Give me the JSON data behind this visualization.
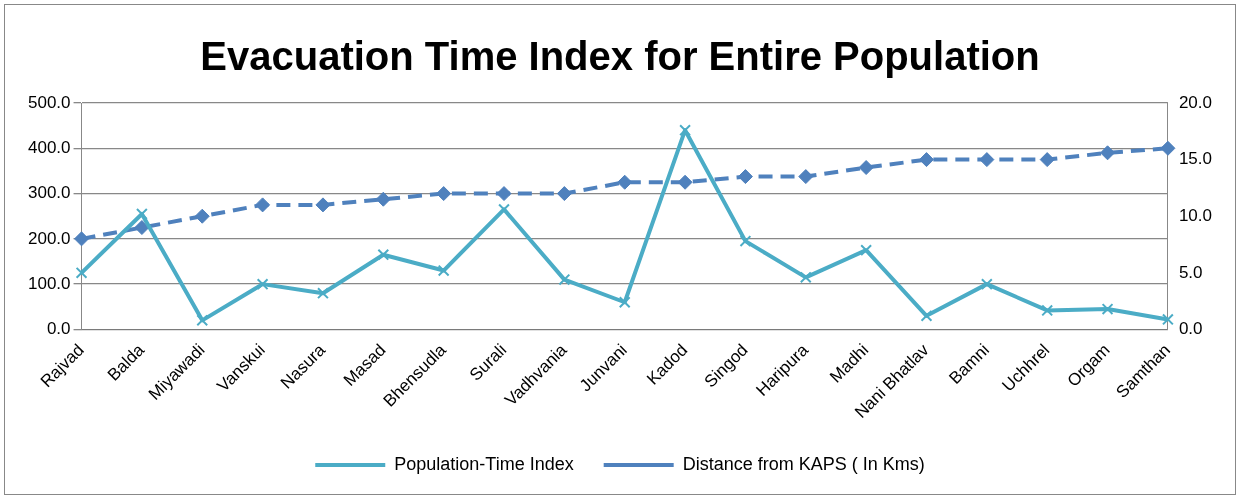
{
  "chart_data": {
    "type": "line",
    "title": "Evacuation Time Index for Entire Population",
    "categories": [
      "Rajvad",
      "Balda",
      "Miyawadi",
      "Vanskui",
      "Nasura",
      "Masad",
      "Bhensudla",
      "Surali",
      "Vadhvania",
      "Junvani",
      "Kadod",
      "Singod",
      "Haripura",
      "Madhi",
      "Nani Bhatlav",
      "Bamni",
      "Uchhrel",
      "Orgam",
      "Samthan"
    ],
    "series": [
      {
        "name": "Population-Time Index",
        "color": "#4bacc6",
        "marker": "cross",
        "line_style": "solid",
        "values": [
          125,
          255,
          20,
          100,
          80,
          165,
          130,
          265,
          110,
          60,
          440,
          195,
          115,
          175,
          30,
          100,
          42,
          45,
          22
        ]
      },
      {
        "name": "Distance from KAPS ( In Kms)",
        "color": "#4f81bd",
        "marker": "diamond",
        "line_style": "dashed",
        "axis": "y2",
        "values": [
          8,
          9,
          10,
          11,
          11,
          11.5,
          12,
          12,
          12,
          13,
          13,
          13.5,
          13.5,
          14.3,
          15,
          15,
          15,
          15.6,
          16
        ]
      }
    ],
    "ylim": [
      0,
      500
    ],
    "yticks": [
      {
        "value": 0,
        "label": "0.0"
      },
      {
        "value": 100,
        "label": "100.0"
      },
      {
        "value": 200,
        "label": "200.0"
      },
      {
        "value": 300,
        "label": "300.0"
      },
      {
        "value": 400,
        "label": "400.0"
      },
      {
        "value": 500,
        "label": "500.0"
      }
    ],
    "y2lim": [
      0,
      20
    ],
    "y2ticks": [
      {
        "value": 0,
        "label": "0.0"
      },
      {
        "value": 5,
        "label": "5.0"
      },
      {
        "value": 10,
        "label": "10.0"
      },
      {
        "value": 15,
        "label": "15.0"
      },
      {
        "value": 20,
        "label": "20.0"
      }
    ],
    "grid": "y",
    "legend": "bottom"
  }
}
